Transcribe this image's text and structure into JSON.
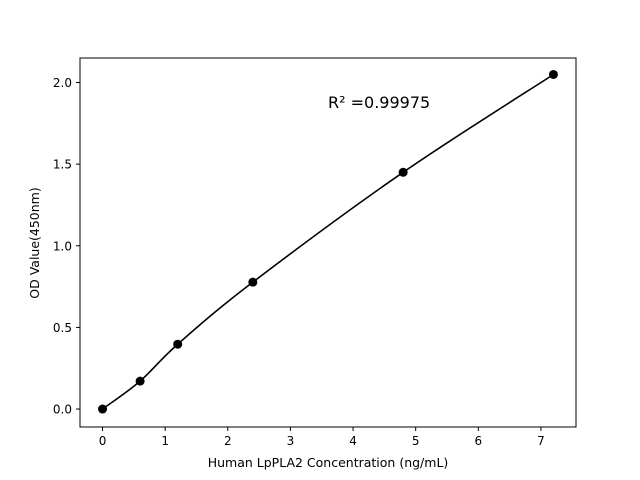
{
  "chart_data": {
    "type": "line",
    "title": "",
    "xlabel": "Human LpPLA2 Concentration (ng/mL)",
    "ylabel": "OD Value(450nm)",
    "xlim": [
      -0.36,
      7.56
    ],
    "ylim": [
      -0.11,
      2.15
    ],
    "xticks": [
      "0",
      "1",
      "2",
      "3",
      "4",
      "5",
      "6",
      "7"
    ],
    "yticks": [
      "0.0",
      "0.5",
      "1.0",
      "1.5",
      "2.0"
    ],
    "grid": false,
    "annotation": "R² =0.99975",
    "series": [
      {
        "x": [
          0,
          0.6,
          1.2,
          2.4,
          4.8,
          7.2
        ],
        "y": [
          0.0,
          0.171,
          0.397,
          0.777,
          1.45,
          2.049
        ],
        "color": "#000000",
        "marker": "circle",
        "fit_line": true
      }
    ]
  }
}
